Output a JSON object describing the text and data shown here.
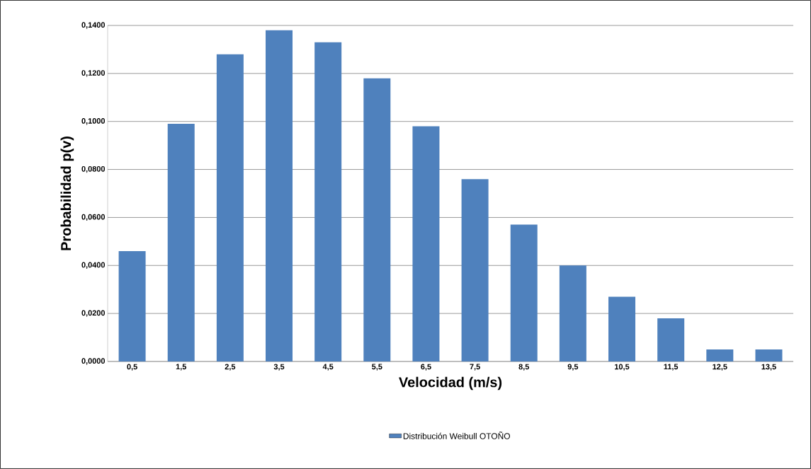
{
  "chart_data": {
    "type": "bar",
    "xlabel": "Velocidad (m/s)",
    "ylabel": "Probabilidad  p(v)",
    "categories": [
      "0,5",
      "1,5",
      "2,5",
      "3,5",
      "4,5",
      "5,5",
      "6,5",
      "7,5",
      "8,5",
      "9,5",
      "10,5",
      "11,5",
      "12,5",
      "13,5"
    ],
    "series": [
      {
        "name": "Distribución Weibull OTOÑO",
        "color": "#4f81bd",
        "values": [
          0.046,
          0.099,
          0.128,
          0.138,
          0.133,
          0.118,
          0.098,
          0.076,
          0.057,
          0.04,
          0.027,
          0.018,
          0.005,
          0.005
        ]
      }
    ],
    "ylim": [
      0,
      0.14
    ],
    "yticks": [
      {
        "value": 0,
        "label": "0,0000"
      },
      {
        "value": 0.02,
        "label": "0,0200"
      },
      {
        "value": 0.04,
        "label": "0,0400"
      },
      {
        "value": 0.06,
        "label": "0,0600"
      },
      {
        "value": 0.08,
        "label": "0,0800"
      },
      {
        "value": 0.1,
        "label": "0,1000"
      },
      {
        "value": 0.12,
        "label": "0,1200"
      },
      {
        "value": 0.14,
        "label": "0,1400"
      }
    ],
    "grid": "y",
    "legend": "bottom"
  }
}
